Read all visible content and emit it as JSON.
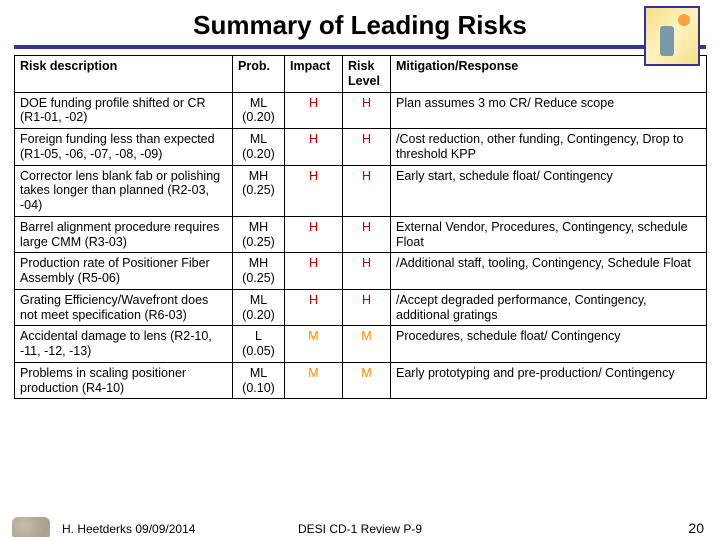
{
  "title": "Summary of Leading Risks",
  "columns": [
    "Risk description",
    "Prob.",
    "Impact",
    "Risk Level",
    "Mitigation/Response"
  ],
  "col_align": [
    "left",
    "center",
    "center",
    "center",
    "left"
  ],
  "risk_colors": {
    "H": "#c00000",
    "M": "#ff8c00"
  },
  "rows": [
    {
      "desc": "DOE funding profile shifted or CR (R1-01, -02)",
      "prob": "ML (0.20)",
      "impact": "H",
      "level": "H",
      "mit": "Plan assumes 3 mo CR/ Reduce scope"
    },
    {
      "desc": "Foreign funding less than expected (R1-05, -06, -07, -08, -09)",
      "prob": "ML (0.20)",
      "impact": "H",
      "level": "H",
      "mit": "/Cost reduction, other funding, Contingency, Drop to threshold KPP"
    },
    {
      "desc": "Corrector lens blank fab or polishing takes longer than planned (R2-03, -04)",
      "prob": "MH (0.25)",
      "impact": "H",
      "level": "H",
      "mit": "Early start, schedule float/ Contingency"
    },
    {
      "desc": "Barrel alignment procedure requires large CMM (R3-03)",
      "prob": "MH (0.25)",
      "impact": "H",
      "level": "H",
      "mit": "External Vendor, Procedures, Contingency, schedule Float"
    },
    {
      "desc": "Production rate of Positioner Fiber Assembly (R5-06)",
      "prob": "MH (0.25)",
      "impact": "H",
      "level": "H",
      "mit": "/Additional staff, tooling, Contingency, Schedule Float"
    },
    {
      "desc": "Grating Efficiency/Wavefront does not meet specification (R6-03)",
      "prob": "ML (0.20)",
      "impact": "H",
      "level": "H",
      "mit": "/Accept degraded performance, Contingency, additional gratings"
    },
    {
      "desc": "Accidental damage to lens (R2-10, -11, -12, -13)",
      "prob": "L (0.05)",
      "impact": "M",
      "level": "M",
      "mit": "Procedures, schedule float/ Contingency"
    },
    {
      "desc": "Problems in scaling positioner production (R4-10)",
      "prob": "ML (0.10)",
      "impact": "M",
      "level": "M",
      "mit": "Early prototyping and pre-production/ Contingency"
    }
  ],
  "footer": {
    "author": "H. Heetderks    09/09/2014",
    "center": "DESI CD-1 Review  P-9",
    "page": "20"
  }
}
